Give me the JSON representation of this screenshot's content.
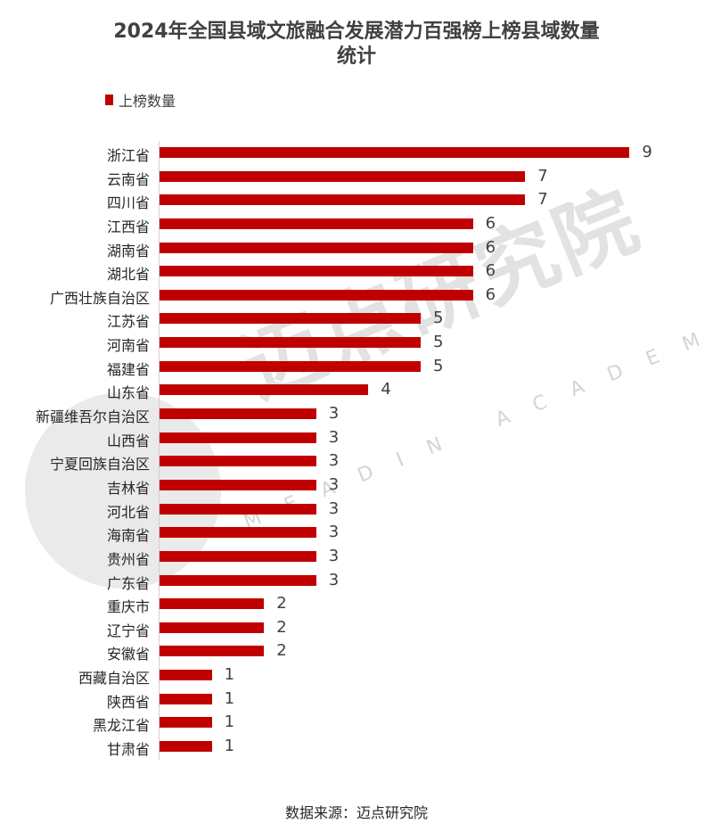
{
  "chart_data": {
    "type": "bar",
    "orientation": "horizontal",
    "title": "2024年全国县域文旅融合发展潜力百强榜上榜县域数量统计",
    "title_lines": [
      "2024年全国县域文旅融合发展潜力百强榜上榜县域数量",
      "统计"
    ],
    "legend": {
      "position": "top-left",
      "entries": [
        "上榜数量"
      ]
    },
    "series": [
      {
        "name": "上榜数量",
        "color": "#c00000",
        "values": [
          9,
          7,
          7,
          6,
          6,
          6,
          6,
          5,
          5,
          5,
          4,
          3,
          3,
          3,
          3,
          3,
          3,
          3,
          3,
          2,
          2,
          2,
          1,
          1,
          1,
          1
        ]
      }
    ],
    "categories": [
      "浙江省",
      "云南省",
      "四川省",
      "江西省",
      "湖南省",
      "湖北省",
      "广西壮族自治区",
      "江苏省",
      "河南省",
      "福建省",
      "山东省",
      "新疆维吾尔自治区",
      "山西省",
      "宁夏回族自治区",
      "吉林省",
      "河北省",
      "海南省",
      "贵州省",
      "广东省",
      "重庆市",
      "辽宁省",
      "安徽省",
      "西藏自治区",
      "陕西省",
      "黑龙江省",
      "甘肃省"
    ],
    "data_labels": true,
    "xlim": [
      0,
      9
    ],
    "grid": false,
    "xlabel": "",
    "ylabel": "",
    "source": "数据来源：迈点研究院"
  },
  "header": {
    "title_line1": "2024年全国县域文旅融合发展潜力百强榜上榜县域数量",
    "title_line2": "统计"
  },
  "legend": {
    "label": "上榜数量",
    "color": "#c00000"
  },
  "watermark": {
    "cn": "迈点研究院",
    "en": "MEADIN ACADEMY"
  },
  "footer": {
    "source": "数据来源：迈点研究院"
  },
  "rows": [
    {
      "label": "浙江省",
      "value": "9"
    },
    {
      "label": "云南省",
      "value": "7"
    },
    {
      "label": "四川省",
      "value": "7"
    },
    {
      "label": "江西省",
      "value": "6"
    },
    {
      "label": "湖南省",
      "value": "6"
    },
    {
      "label": "湖北省",
      "value": "6"
    },
    {
      "label": "广西壮族自治区",
      "value": "6"
    },
    {
      "label": "江苏省",
      "value": "5"
    },
    {
      "label": "河南省",
      "value": "5"
    },
    {
      "label": "福建省",
      "value": "5"
    },
    {
      "label": "山东省",
      "value": "4"
    },
    {
      "label": "新疆维吾尔自治区",
      "value": "3"
    },
    {
      "label": "山西省",
      "value": "3"
    },
    {
      "label": "宁夏回族自治区",
      "value": "3"
    },
    {
      "label": "吉林省",
      "value": "3"
    },
    {
      "label": "河北省",
      "value": "3"
    },
    {
      "label": "海南省",
      "value": "3"
    },
    {
      "label": "贵州省",
      "value": "3"
    },
    {
      "label": "广东省",
      "value": "3"
    },
    {
      "label": "重庆市",
      "value": "2"
    },
    {
      "label": "辽宁省",
      "value": "2"
    },
    {
      "label": "安徽省",
      "value": "2"
    },
    {
      "label": "西藏自治区",
      "value": "1"
    },
    {
      "label": "陕西省",
      "value": "1"
    },
    {
      "label": "黑龙江省",
      "value": "1"
    },
    {
      "label": "甘肃省",
      "value": "1"
    }
  ]
}
